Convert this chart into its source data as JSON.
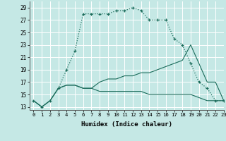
{
  "xlabel": "Humidex (Indice chaleur)",
  "xlim": [
    -0.5,
    23
  ],
  "ylim": [
    12.5,
    30
  ],
  "yticks": [
    13,
    15,
    17,
    19,
    21,
    23,
    25,
    27,
    29
  ],
  "xticks": [
    0,
    1,
    2,
    3,
    4,
    5,
    6,
    7,
    8,
    9,
    10,
    11,
    12,
    13,
    14,
    15,
    16,
    17,
    18,
    19,
    20,
    21,
    22,
    23
  ],
  "bg_color": "#c5e8e5",
  "line_color": "#1a6b5a",
  "grid_color": "#ffffff",
  "line1_x": [
    0,
    1,
    2,
    3,
    4,
    5,
    6,
    7,
    8,
    9,
    10,
    11,
    12,
    13,
    14,
    15,
    16,
    17,
    18,
    19,
    20,
    21,
    22,
    23
  ],
  "line1_y": [
    14,
    13,
    14,
    16,
    19,
    22,
    28,
    28,
    28,
    28,
    28.5,
    28.5,
    29,
    28.5,
    27,
    27,
    27,
    24,
    23,
    20,
    17,
    16,
    14,
    14
  ],
  "line2_x": [
    0,
    1,
    2,
    3,
    4,
    5,
    6,
    7,
    8,
    9,
    10,
    11,
    12,
    13,
    14,
    15,
    16,
    17,
    18,
    19,
    20,
    21,
    22,
    23
  ],
  "line2_y": [
    14,
    13,
    14,
    16,
    16.5,
    16.5,
    16,
    16,
    15.5,
    15.5,
    15.5,
    15.5,
    15.5,
    15.5,
    15,
    15,
    15,
    15,
    15,
    15,
    14.5,
    14,
    14,
    14
  ],
  "line3_x": [
    0,
    1,
    2,
    3,
    4,
    5,
    6,
    7,
    8,
    9,
    10,
    11,
    12,
    13,
    14,
    15,
    16,
    17,
    18,
    19,
    20,
    21,
    22,
    23
  ],
  "line3_y": [
    14,
    13,
    14,
    16,
    16.5,
    16.5,
    16,
    16,
    17,
    17.5,
    17.5,
    18,
    18,
    18.5,
    18.5,
    19,
    19.5,
    20,
    20.5,
    23,
    20,
    17,
    17,
    14
  ]
}
